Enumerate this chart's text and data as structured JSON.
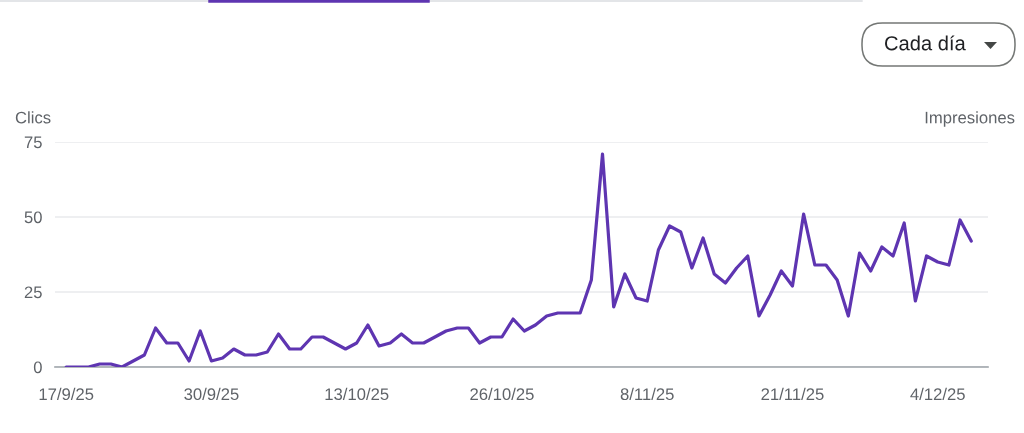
{
  "chart_data": {
    "type": "line",
    "ylabel": "Clics",
    "y2label": "Impresiones",
    "annotations": [
      "Cada día"
    ],
    "x": [
      "2025-09-17",
      "2025-09-18",
      "2025-09-19",
      "2025-09-20",
      "2025-09-21",
      "2025-09-22",
      "2025-09-23",
      "2025-09-24",
      "2025-09-25",
      "2025-09-26",
      "2025-09-27",
      "2025-09-28",
      "2025-09-29",
      "2025-09-30",
      "2025-10-01",
      "2025-10-02",
      "2025-10-03",
      "2025-10-04",
      "2025-10-05",
      "2025-10-06",
      "2025-10-07",
      "2025-10-08",
      "2025-10-09",
      "2025-10-10",
      "2025-10-11",
      "2025-10-12",
      "2025-10-13",
      "2025-10-14",
      "2025-10-15",
      "2025-10-16",
      "2025-10-17",
      "2025-10-18",
      "2025-10-19",
      "2025-10-20",
      "2025-10-21",
      "2025-10-22",
      "2025-10-23",
      "2025-10-24",
      "2025-10-25",
      "2025-10-26",
      "2025-10-27",
      "2025-10-28",
      "2025-10-29",
      "2025-10-30",
      "2025-10-31",
      "2025-11-01",
      "2025-11-02",
      "2025-11-03",
      "2025-11-04",
      "2025-11-05",
      "2025-11-06",
      "2025-11-07",
      "2025-11-08",
      "2025-11-09",
      "2025-11-10",
      "2025-11-11",
      "2025-11-12",
      "2025-11-13",
      "2025-11-14",
      "2025-11-15",
      "2025-11-16",
      "2025-11-17",
      "2025-11-18",
      "2025-11-19",
      "2025-11-20",
      "2025-11-21",
      "2025-11-22",
      "2025-11-23",
      "2025-11-24",
      "2025-11-25",
      "2025-11-26",
      "2025-11-27",
      "2025-11-28",
      "2025-11-29",
      "2025-11-30",
      "2025-12-01",
      "2025-12-02",
      "2025-12-03",
      "2025-12-04",
      "2025-12-05",
      "2025-12-06",
      "2025-12-07"
    ],
    "series": [
      {
        "color": "#5e35b1",
        "values": [
          0,
          0,
          0,
          1,
          1,
          0,
          2,
          4,
          13,
          8,
          8,
          2,
          12,
          2,
          3,
          6,
          4,
          4,
          5,
          11,
          6,
          6,
          10,
          10,
          8,
          6,
          8,
          14,
          7,
          8,
          11,
          8,
          8,
          10,
          12,
          13,
          13,
          8,
          10,
          10,
          16,
          12,
          14,
          17,
          18,
          18,
          18,
          29,
          71,
          20,
          31,
          23,
          22,
          39,
          47,
          45,
          33,
          43,
          31,
          28,
          33,
          37,
          17,
          24,
          32,
          27,
          51,
          34,
          34,
          29,
          17,
          38,
          32,
          40,
          37,
          48,
          22,
          37,
          35,
          34,
          49,
          42
        ]
      }
    ],
    "xlim": [
      "2025-09-16",
      "2025-12-08T12:00"
    ],
    "xticks": [
      {
        "value": "2025-09-17",
        "label": "17/9/25"
      },
      {
        "value": "2025-09-30",
        "label": "30/9/25"
      },
      {
        "value": "2025-10-13",
        "label": "13/10/25"
      },
      {
        "value": "2025-10-26",
        "label": "26/10/25"
      },
      {
        "value": "2025-11-08",
        "label": "8/11/25"
      },
      {
        "value": "2025-11-21",
        "label": "21/11/25"
      },
      {
        "value": "2025-12-04",
        "label": "4/12/25"
      }
    ],
    "ylim": [
      0,
      75
    ],
    "yticks": [
      0,
      25,
      50,
      75
    ],
    "grid": "y",
    "line_style": "solid"
  }
}
